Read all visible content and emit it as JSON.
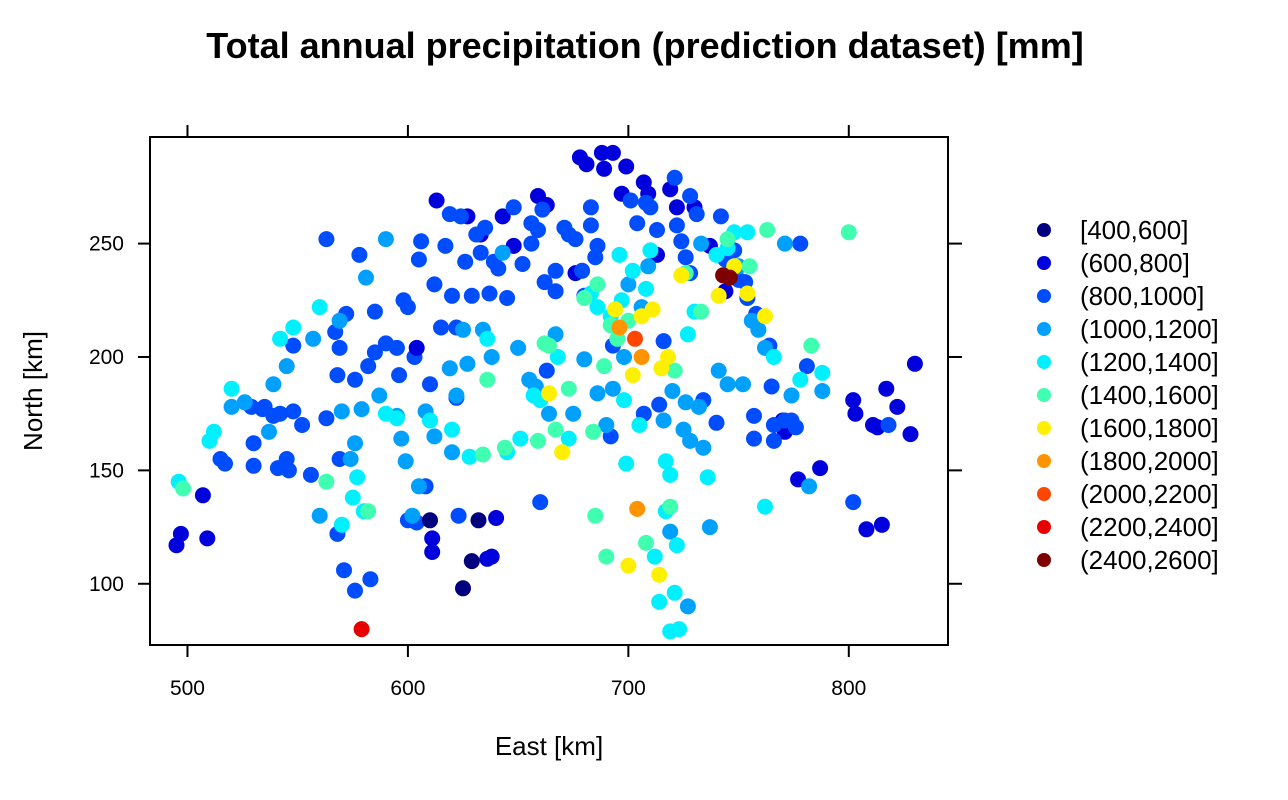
{
  "chart_data": {
    "type": "scatter",
    "title": "Total annual precipitation (prediction dataset) [mm]",
    "xlabel": "East [km]",
    "ylabel": "North [km]",
    "xlim": [
      483,
      845
    ],
    "ylim": [
      73,
      297
    ],
    "x_ticks": [
      500,
      600,
      700,
      800
    ],
    "y_ticks": [
      100,
      150,
      200,
      250
    ],
    "grid": false,
    "legend_position": "right",
    "classes": [
      {
        "label": "[400,600]",
        "color": "#00007F"
      },
      {
        "label": "(600,800]",
        "color": "#0000DC"
      },
      {
        "label": "(800,1000]",
        "color": "#004CFF"
      },
      {
        "label": "(1000,1200]",
        "color": "#00A0FF"
      },
      {
        "label": "(1200,1400]",
        "color": "#00F0FF"
      },
      {
        "label": "(1400,1600]",
        "color": "#40FFB0"
      },
      {
        "label": "(1600,1800]",
        "color": "#FFF000"
      },
      {
        "label": "(1800,2000]",
        "color": "#FF9400"
      },
      {
        "label": "(2000,2200]",
        "color": "#FF4600"
      },
      {
        "label": "(2200,2400]",
        "color": "#E60000"
      },
      {
        "label": "(2400,2600]",
        "color": "#7F0000"
      }
    ],
    "points": [
      [
        495,
        117,
        1
      ],
      [
        497,
        122,
        1
      ],
      [
        507,
        139,
        1
      ],
      [
        509,
        120,
        1
      ],
      [
        515,
        155,
        2
      ],
      [
        517,
        153,
        2
      ],
      [
        529,
        178,
        2
      ],
      [
        530,
        162,
        2
      ],
      [
        530,
        152,
        2
      ],
      [
        534,
        177,
        2
      ],
      [
        535,
        178,
        2
      ],
      [
        539,
        174,
        2
      ],
      [
        541,
        151,
        2
      ],
      [
        542,
        175,
        2
      ],
      [
        546,
        150,
        2
      ],
      [
        548,
        176,
        2
      ],
      [
        552,
        170,
        2
      ],
      [
        556,
        148,
        2
      ],
      [
        563,
        173,
        2
      ],
      [
        569,
        204,
        2
      ],
      [
        568,
        192,
        2
      ],
      [
        569,
        155,
        2
      ],
      [
        571,
        106,
        2
      ],
      [
        576,
        190,
        2
      ],
      [
        576,
        97,
        2
      ],
      [
        582,
        196,
        2
      ],
      [
        583,
        102,
        2
      ],
      [
        585,
        202,
        2
      ],
      [
        590,
        206,
        2
      ],
      [
        595,
        204,
        2
      ],
      [
        596,
        192,
        2
      ],
      [
        600,
        128,
        2
      ],
      [
        603,
        200,
        2
      ],
      [
        604,
        204,
        1
      ],
      [
        604,
        127,
        2
      ],
      [
        608,
        143,
        2
      ],
      [
        610,
        128,
        0
      ],
      [
        611,
        120,
        1
      ],
      [
        611,
        114,
        1
      ],
      [
        613,
        269,
        1
      ],
      [
        625,
        98,
        0
      ],
      [
        627,
        262,
        1
      ],
      [
        629,
        110,
        0
      ],
      [
        632,
        128,
        0
      ],
      [
        633,
        254,
        1
      ],
      [
        636,
        111,
        1
      ],
      [
        638,
        112,
        1
      ],
      [
        640,
        129,
        1
      ],
      [
        643,
        262,
        1
      ],
      [
        648,
        249,
        1
      ],
      [
        659,
        271,
        1
      ],
      [
        663,
        267,
        1
      ],
      [
        676,
        237,
        1
      ],
      [
        678,
        288,
        1
      ],
      [
        681,
        285,
        1
      ],
      [
        688,
        290,
        1
      ],
      [
        689,
        283,
        1
      ],
      [
        693,
        290,
        1
      ],
      [
        697,
        272,
        1
      ],
      [
        699,
        284,
        1
      ],
      [
        707,
        277,
        1
      ],
      [
        709,
        272,
        1
      ],
      [
        713,
        245,
        1
      ],
      [
        719,
        274,
        1
      ],
      [
        722,
        266,
        1
      ],
      [
        730,
        266,
        1
      ],
      [
        737,
        249,
        1
      ],
      [
        744,
        229,
        1
      ],
      [
        770,
        172,
        1
      ],
      [
        771,
        167,
        1
      ],
      [
        777,
        146,
        1
      ],
      [
        787,
        151,
        1
      ],
      [
        802,
        181,
        1
      ],
      [
        803,
        175,
        1
      ],
      [
        813,
        169,
        1
      ],
      [
        815,
        126,
        1
      ],
      [
        817,
        186,
        1
      ],
      [
        822,
        178,
        1
      ],
      [
        828,
        166,
        1
      ],
      [
        830,
        197,
        1
      ],
      [
        808,
        124,
        1
      ],
      [
        811,
        170,
        1
      ],
      [
        545,
        155,
        2
      ],
      [
        548,
        205,
        2
      ],
      [
        563,
        252,
        2
      ],
      [
        567,
        211,
        2
      ],
      [
        568,
        122,
        2
      ],
      [
        572,
        219,
        2
      ],
      [
        578,
        245,
        2
      ],
      [
        585,
        220,
        2
      ],
      [
        598,
        225,
        2
      ],
      [
        600,
        222,
        2
      ],
      [
        605,
        243,
        2
      ],
      [
        606,
        251,
        2
      ],
      [
        610,
        188,
        2
      ],
      [
        612,
        232,
        2
      ],
      [
        615,
        213,
        2
      ],
      [
        617,
        249,
        2
      ],
      [
        619,
        263,
        2
      ],
      [
        620,
        227,
        2
      ],
      [
        622,
        213,
        2
      ],
      [
        622,
        182,
        2
      ],
      [
        623,
        130,
        2
      ],
      [
        624,
        262,
        2
      ],
      [
        626,
        242,
        2
      ],
      [
        629,
        227,
        2
      ],
      [
        631,
        254,
        2
      ],
      [
        633,
        246,
        2
      ],
      [
        635,
        257,
        2
      ],
      [
        637,
        228,
        2
      ],
      [
        639,
        242,
        2
      ],
      [
        641,
        239,
        2
      ],
      [
        645,
        226,
        2
      ],
      [
        648,
        266,
        2
      ],
      [
        652,
        241,
        2
      ],
      [
        656,
        259,
        2
      ],
      [
        656,
        250,
        2
      ],
      [
        659,
        256,
        2
      ],
      [
        660,
        136,
        2
      ],
      [
        661,
        265,
        2
      ],
      [
        662,
        233,
        2
      ],
      [
        663,
        194,
        2
      ],
      [
        667,
        238,
        2
      ],
      [
        667,
        229,
        2
      ],
      [
        671,
        257,
        2
      ],
      [
        673,
        254,
        2
      ],
      [
        676,
        252,
        2
      ],
      [
        679,
        238,
        2
      ],
      [
        680,
        227,
        2
      ],
      [
        683,
        258,
        2
      ],
      [
        683,
        266,
        2
      ],
      [
        685,
        244,
        2
      ],
      [
        686,
        249,
        2
      ],
      [
        692,
        165,
        2
      ],
      [
        693,
        205,
        2
      ],
      [
        701,
        269,
        2
      ],
      [
        704,
        259,
        2
      ],
      [
        707,
        175,
        2
      ],
      [
        708,
        268,
        2
      ],
      [
        710,
        266,
        2
      ],
      [
        713,
        256,
        2
      ],
      [
        714,
        179,
        2
      ],
      [
        716,
        207,
        2
      ],
      [
        721,
        279,
        2
      ],
      [
        722,
        258,
        2
      ],
      [
        724,
        251,
        2
      ],
      [
        726,
        244,
        2
      ],
      [
        728,
        237,
        2
      ],
      [
        728,
        271,
        2
      ],
      [
        731,
        263,
        2
      ],
      [
        734,
        181,
        2
      ],
      [
        740,
        171,
        2
      ],
      [
        742,
        262,
        2
      ],
      [
        744,
        243,
        2
      ],
      [
        748,
        247,
        2
      ],
      [
        750,
        234,
        2
      ],
      [
        753,
        233,
        2
      ],
      [
        754,
        226,
        2
      ],
      [
        757,
        174,
        2
      ],
      [
        757,
        164,
        2
      ],
      [
        758,
        219,
        2
      ],
      [
        764,
        205,
        2
      ],
      [
        765,
        187,
        2
      ],
      [
        766,
        170,
        2
      ],
      [
        766,
        163,
        2
      ],
      [
        771,
        172,
        2
      ],
      [
        774,
        172,
        2
      ],
      [
        776,
        169,
        2
      ],
      [
        778,
        250,
        2
      ],
      [
        781,
        196,
        2
      ],
      [
        802,
        136,
        2
      ],
      [
        818,
        170,
        2
      ],
      [
        520,
        178,
        3
      ],
      [
        526,
        180,
        3
      ],
      [
        537,
        167,
        3
      ],
      [
        539,
        188,
        3
      ],
      [
        545,
        196,
        3
      ],
      [
        557,
        208,
        3
      ],
      [
        560,
        130,
        3
      ],
      [
        569,
        216,
        3
      ],
      [
        570,
        176,
        3
      ],
      [
        574,
        155,
        3
      ],
      [
        576,
        162,
        3
      ],
      [
        579,
        177,
        3
      ],
      [
        581,
        235,
        3
      ],
      [
        587,
        183,
        3
      ],
      [
        590,
        252,
        3
      ],
      [
        595,
        174,
        3
      ],
      [
        597,
        164,
        3
      ],
      [
        599,
        154,
        3
      ],
      [
        602,
        130,
        3
      ],
      [
        605,
        143,
        3
      ],
      [
        608,
        176,
        3
      ],
      [
        612,
        165,
        3
      ],
      [
        619,
        195,
        3
      ],
      [
        620,
        158,
        3
      ],
      [
        622,
        183,
        3
      ],
      [
        625,
        212,
        3
      ],
      [
        627,
        197,
        3
      ],
      [
        634,
        212,
        3
      ],
      [
        638,
        200,
        3
      ],
      [
        643,
        246,
        3
      ],
      [
        650,
        204,
        3
      ],
      [
        655,
        190,
        3
      ],
      [
        658,
        187,
        3
      ],
      [
        664,
        175,
        3
      ],
      [
        667,
        210,
        3
      ],
      [
        675,
        175,
        3
      ],
      [
        680,
        199,
        3
      ],
      [
        686,
        184,
        3
      ],
      [
        690,
        170,
        3
      ],
      [
        693,
        186,
        3
      ],
      [
        698,
        200,
        3
      ],
      [
        700,
        232,
        3
      ],
      [
        706,
        222,
        3
      ],
      [
        709,
        240,
        3
      ],
      [
        716,
        172,
        3
      ],
      [
        720,
        185,
        3
      ],
      [
        726,
        180,
        3
      ],
      [
        728,
        163,
        3
      ],
      [
        732,
        178,
        3
      ],
      [
        734,
        160,
        3
      ],
      [
        737,
        125,
        3
      ],
      [
        741,
        194,
        3
      ],
      [
        745,
        188,
        3
      ],
      [
        750,
        240,
        3
      ],
      [
        752,
        188,
        3
      ],
      [
        756,
        216,
        3
      ],
      [
        759,
        212,
        3
      ],
      [
        762,
        204,
        3
      ],
      [
        771,
        250,
        3
      ],
      [
        774,
        183,
        3
      ],
      [
        782,
        143,
        3
      ],
      [
        788,
        185,
        3
      ],
      [
        727,
        90,
        3
      ],
      [
        719,
        123,
        3
      ],
      [
        725,
        168,
        3
      ],
      [
        733,
        250,
        3
      ],
      [
        496,
        145,
        4
      ],
      [
        510,
        163,
        4
      ],
      [
        512,
        167,
        4
      ],
      [
        520,
        186,
        4
      ],
      [
        542,
        208,
        4
      ],
      [
        548,
        213,
        4
      ],
      [
        560,
        222,
        4
      ],
      [
        570,
        126,
        4
      ],
      [
        575,
        138,
        4
      ],
      [
        577,
        147,
        4
      ],
      [
        580,
        132,
        4
      ],
      [
        590,
        175,
        4
      ],
      [
        595,
        173,
        4
      ],
      [
        610,
        172,
        4
      ],
      [
        620,
        168,
        4
      ],
      [
        628,
        156,
        4
      ],
      [
        636,
        208,
        4
      ],
      [
        645,
        158,
        4
      ],
      [
        651,
        164,
        4
      ],
      [
        657,
        183,
        4
      ],
      [
        660,
        181,
        4
      ],
      [
        668,
        200,
        4
      ],
      [
        673,
        164,
        4
      ],
      [
        683,
        228,
        4
      ],
      [
        686,
        222,
        4
      ],
      [
        692,
        218,
        4
      ],
      [
        696,
        245,
        4
      ],
      [
        697,
        225,
        4
      ],
      [
        698,
        181,
        4
      ],
      [
        699,
        153,
        4
      ],
      [
        702,
        238,
        4
      ],
      [
        705,
        170,
        4
      ],
      [
        708,
        230,
        4
      ],
      [
        710,
        247,
        4
      ],
      [
        712,
        112,
        4
      ],
      [
        714,
        92,
        4
      ],
      [
        717,
        154,
        4
      ],
      [
        719,
        148,
        4
      ],
      [
        719,
        79,
        4
      ],
      [
        721,
        96,
        4
      ],
      [
        723,
        80,
        4
      ],
      [
        727,
        210,
        4
      ],
      [
        730,
        220,
        4
      ],
      [
        736,
        147,
        4
      ],
      [
        740,
        245,
        4
      ],
      [
        745,
        248,
        4
      ],
      [
        748,
        255,
        4
      ],
      [
        754,
        255,
        4
      ],
      [
        762,
        134,
        4
      ],
      [
        766,
        200,
        4
      ],
      [
        778,
        190,
        4
      ],
      [
        788,
        193,
        4
      ],
      [
        717,
        132,
        4
      ],
      [
        722,
        117,
        4
      ],
      [
        498,
        142,
        5
      ],
      [
        563,
        145,
        5
      ],
      [
        582,
        132,
        5
      ],
      [
        634,
        157,
        5
      ],
      [
        636,
        190,
        5
      ],
      [
        644,
        160,
        5
      ],
      [
        664,
        205,
        5
      ],
      [
        667,
        168,
        5
      ],
      [
        673,
        186,
        5
      ],
      [
        684,
        167,
        5
      ],
      [
        685,
        130,
        5
      ],
      [
        689,
        196,
        5
      ],
      [
        690,
        112,
        5
      ],
      [
        692,
        214,
        5
      ],
      [
        695,
        208,
        5
      ],
      [
        700,
        216,
        5
      ],
      [
        708,
        118,
        5
      ],
      [
        719,
        134,
        5
      ],
      [
        721,
        194,
        5
      ],
      [
        726,
        237,
        5
      ],
      [
        733,
        220,
        5
      ],
      [
        745,
        252,
        5
      ],
      [
        755,
        240,
        5
      ],
      [
        763,
        256,
        5
      ],
      [
        783,
        205,
        5
      ],
      [
        800,
        255,
        5
      ],
      [
        659,
        163,
        5
      ],
      [
        662,
        206,
        5
      ],
      [
        680,
        226,
        5
      ],
      [
        686,
        232,
        5
      ],
      [
        664,
        184,
        6
      ],
      [
        670,
        158,
        6
      ],
      [
        694,
        221,
        6
      ],
      [
        700,
        108,
        6
      ],
      [
        702,
        192,
        6
      ],
      [
        706,
        218,
        6
      ],
      [
        711,
        221,
        6
      ],
      [
        714,
        104,
        6
      ],
      [
        715,
        195,
        6
      ],
      [
        718,
        200,
        6
      ],
      [
        724,
        236,
        6
      ],
      [
        741,
        227,
        6
      ],
      [
        748,
        240,
        6
      ],
      [
        762,
        218,
        6
      ],
      [
        754,
        228,
        6
      ],
      [
        704,
        133,
        7
      ],
      [
        706,
        200,
        7
      ],
      [
        696,
        213,
        7
      ],
      [
        703,
        208,
        8
      ],
      [
        579,
        80,
        9
      ],
      [
        743,
        236,
        10
      ],
      [
        746,
        235,
        10
      ]
    ]
  }
}
